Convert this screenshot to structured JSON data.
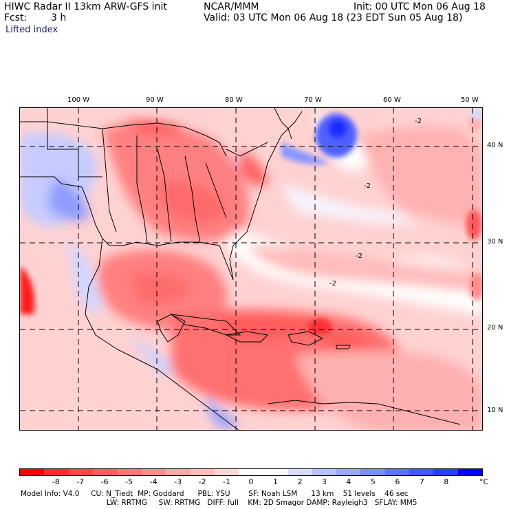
{
  "header": {
    "title": "HIWC Radar II 13km ARW-GFS init",
    "center": "NCAR/MMM",
    "init": "Init: 00 UTC Mon 06 Aug 18",
    "fcst_label": "Fcst:",
    "fcst_value": "3 h",
    "valid": "Valid: 03 UTC Mon 06 Aug 18 (23 EDT Sun 05 Aug 18)",
    "field": "Lifted index"
  },
  "map": {
    "lon_labels": [
      "100 W",
      "90 W",
      "80 W",
      "70 W",
      "60 W",
      "50 W"
    ],
    "lat_labels": [
      "40 N",
      "30 N",
      "20 N",
      "10 N"
    ],
    "contour_label": "-2",
    "colors": {
      "deep_red": "#ff1a1a",
      "red": "#ff5858",
      "salmon": "#ff8c8c",
      "pink": "#ffb8b8",
      "light_pink": "#ffdcdc",
      "white": "#ffffff",
      "light_blue": "#c8d0ff",
      "blue": "#7b8cff",
      "deep_blue": "#1c2cff"
    }
  },
  "colorbar": {
    "ticks": [
      "-8",
      "-7",
      "-6",
      "-5",
      "-4",
      "-3",
      "-2",
      "-1",
      "0",
      "1",
      "2",
      "3",
      "4",
      "5",
      "6",
      "7",
      "8"
    ],
    "unit": "°C",
    "colors": [
      "#ff0000",
      "#ff2a2a",
      "#ff4646",
      "#ff5e5e",
      "#ff7676",
      "#ff8e8e",
      "#ffa6a6",
      "#ffbebe",
      "#ffd6d6",
      "#ffffff",
      "#ffffff",
      "#d6dcff",
      "#b8c2ff",
      "#9aa8ff",
      "#7c8eff",
      "#5e74ff",
      "#405aff",
      "#2240ff",
      "#0000ff"
    ]
  },
  "model_info": {
    "line1": "Model Info: V4.0     CU: N_Tiedt  MP: Goddard      PBL: YSU        SF: Noah LSM      13 km    51 levels    46 sec",
    "line2": "LW: RRTMG     SW: RRTMG   DIFF: full    KM: 2D Smagor DAMP: Rayleigh3   SFLAY: MM5"
  }
}
